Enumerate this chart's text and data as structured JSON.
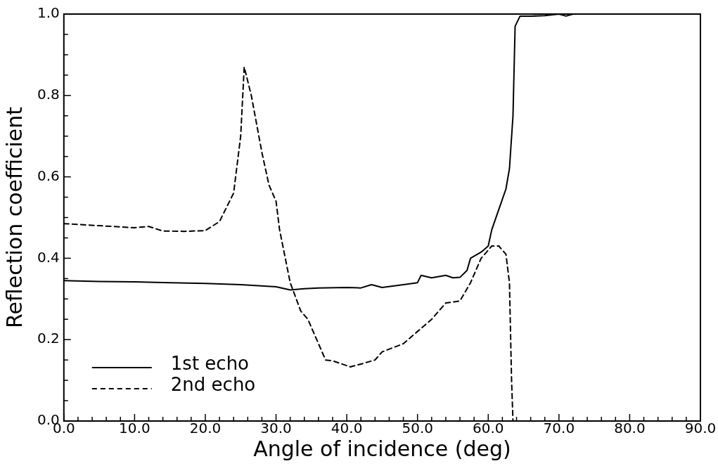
{
  "chart_data": {
    "type": "line",
    "xlabel": "Angle of incidence (deg)",
    "ylabel": "Reflection coefficient",
    "xlim": [
      0,
      90
    ],
    "ylim": [
      0,
      1
    ],
    "xticks": [
      {
        "value": 0,
        "label": "0.0"
      },
      {
        "value": 2,
        "label": null
      },
      {
        "value": 4,
        "label": null
      },
      {
        "value": 6,
        "label": null
      },
      {
        "value": 8,
        "label": null
      },
      {
        "value": 10,
        "label": "10.0"
      },
      {
        "value": 12,
        "label": null
      },
      {
        "value": 14,
        "label": null
      },
      {
        "value": 16,
        "label": null
      },
      {
        "value": 18,
        "label": null
      },
      {
        "value": 20,
        "label": "20.0"
      },
      {
        "value": 22,
        "label": null
      },
      {
        "value": 24,
        "label": null
      },
      {
        "value": 26,
        "label": null
      },
      {
        "value": 28,
        "label": null
      },
      {
        "value": 30,
        "label": "30.0"
      },
      {
        "value": 32,
        "label": null
      },
      {
        "value": 34,
        "label": null
      },
      {
        "value": 36,
        "label": null
      },
      {
        "value": 38,
        "label": null
      },
      {
        "value": 40,
        "label": "40.0"
      },
      {
        "value": 42,
        "label": null
      },
      {
        "value": 44,
        "label": null
      },
      {
        "value": 46,
        "label": null
      },
      {
        "value": 48,
        "label": null
      },
      {
        "value": 50,
        "label": "50.0"
      },
      {
        "value": 52,
        "label": null
      },
      {
        "value": 54,
        "label": null
      },
      {
        "value": 56,
        "label": null
      },
      {
        "value": 58,
        "label": null
      },
      {
        "value": 60,
        "label": "60.0"
      },
      {
        "value": 62,
        "label": null
      },
      {
        "value": 64,
        "label": null
      },
      {
        "value": 66,
        "label": null
      },
      {
        "value": 68,
        "label": null
      },
      {
        "value": 70,
        "label": "70.0"
      },
      {
        "value": 72,
        "label": null
      },
      {
        "value": 74,
        "label": null
      },
      {
        "value": 76,
        "label": null
      },
      {
        "value": 78,
        "label": null
      },
      {
        "value": 80,
        "label": "80.0"
      },
      {
        "value": 82,
        "label": null
      },
      {
        "value": 84,
        "label": null
      },
      {
        "value": 86,
        "label": null
      },
      {
        "value": 88,
        "label": null
      },
      {
        "value": 90,
        "label": "90.0"
      }
    ],
    "yticks": [
      {
        "value": 0,
        "label": "0.0"
      },
      {
        "value": 0.05,
        "label": null
      },
      {
        "value": 0.1,
        "label": null
      },
      {
        "value": 0.15,
        "label": null
      },
      {
        "value": 0.2,
        "label": "0.2"
      },
      {
        "value": 0.25,
        "label": null
      },
      {
        "value": 0.3,
        "label": null
      },
      {
        "value": 0.35,
        "label": null
      },
      {
        "value": 0.4,
        "label": "0.4"
      },
      {
        "value": 0.45,
        "label": null
      },
      {
        "value": 0.5,
        "label": null
      },
      {
        "value": 0.55,
        "label": null
      },
      {
        "value": 0.6,
        "label": "0.6"
      },
      {
        "value": 0.65,
        "label": null
      },
      {
        "value": 0.7,
        "label": null
      },
      {
        "value": 0.75,
        "label": null
      },
      {
        "value": 0.8,
        "label": "0.8"
      },
      {
        "value": 0.85,
        "label": null
      },
      {
        "value": 0.9,
        "label": null
      },
      {
        "value": 0.95,
        "label": null
      },
      {
        "value": 1,
        "label": "1.0"
      }
    ],
    "grid": false,
    "legend": "bottom left",
    "marker": "none",
    "series": [
      {
        "name": "1st echo",
        "color": "#000000",
        "line_style": "solid",
        "x": [
          0,
          5,
          10,
          15,
          20,
          25,
          30,
          32,
          34,
          36,
          40,
          42,
          43.5,
          45,
          48,
          50,
          50.5,
          52,
          54,
          55,
          56,
          57,
          57.5,
          59,
          60,
          60.5,
          61.5,
          62.5,
          63,
          63.5,
          63.8,
          64.5,
          66,
          68,
          70,
          71,
          72
        ],
        "values": [
          0.345,
          0.343,
          0.342,
          0.34,
          0.338,
          0.335,
          0.33,
          0.322,
          0.325,
          0.327,
          0.328,
          0.327,
          0.335,
          0.328,
          0.335,
          0.34,
          0.358,
          0.352,
          0.358,
          0.352,
          0.353,
          0.37,
          0.4,
          0.415,
          0.43,
          0.47,
          0.52,
          0.57,
          0.62,
          0.75,
          0.97,
          0.995,
          0.995,
          0.996,
          1.0,
          0.995,
          1.0
        ]
      },
      {
        "name": "2nd echo",
        "color": "#000000",
        "line_style": "dashed",
        "x": [
          0,
          5,
          10,
          12,
          14,
          17,
          20,
          22,
          24,
          25,
          25.5,
          26.5,
          28,
          29,
          30,
          30.5,
          32,
          33.5,
          34.5,
          36,
          37,
          38,
          40.5,
          42,
          44,
          45,
          48,
          50,
          52,
          54,
          56,
          57.5,
          59,
          60.5,
          61.5,
          62.5,
          63,
          63.3,
          63.5
        ],
        "values": [
          0.485,
          0.48,
          0.475,
          0.478,
          0.467,
          0.466,
          0.468,
          0.49,
          0.56,
          0.7,
          0.87,
          0.8,
          0.66,
          0.58,
          0.54,
          0.47,
          0.34,
          0.27,
          0.25,
          0.19,
          0.15,
          0.148,
          0.133,
          0.14,
          0.15,
          0.17,
          0.19,
          0.22,
          0.25,
          0.29,
          0.295,
          0.34,
          0.4,
          0.43,
          0.43,
          0.41,
          0.34,
          0.1,
          0
        ]
      }
    ]
  }
}
